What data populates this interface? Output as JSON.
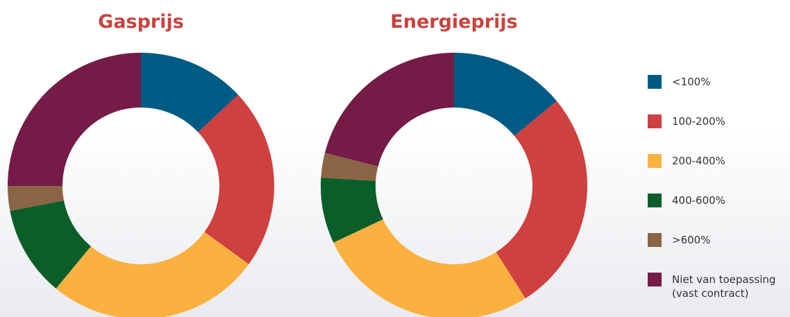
{
  "chart_data": [
    {
      "type": "pie",
      "donut": true,
      "title": "Gasprijs",
      "categories": [
        "<100%",
        "100-200%",
        "200-400%",
        "400-600%",
        ">600%",
        "Niet van toepassing (vast contract)"
      ],
      "colors": [
        "#005b84",
        "#cf4040",
        "#fbb040",
        "#0b5e2a",
        "#8b6446",
        "#741b47"
      ],
      "values": [
        13,
        22,
        26,
        11,
        3,
        25
      ]
    },
    {
      "type": "pie",
      "donut": true,
      "title": "Energieprijs",
      "colors": [
        "#005b84",
        "#cf4040",
        "#fbb040",
        "#0b5e2a",
        "#8b6446",
        "#741b47"
      ],
      "values": [
        14,
        27,
        27,
        8,
        3,
        21
      ]
    }
  ]
}
